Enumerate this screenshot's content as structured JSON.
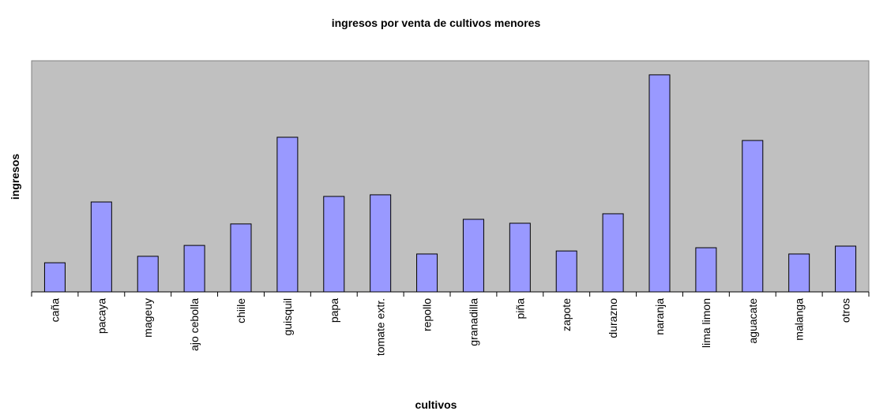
{
  "chart_data": {
    "type": "bar",
    "title": "ingresos por venta de cultivos menores",
    "xlabel": "cultivos",
    "ylabel": "ingresos",
    "categories": [
      "caña",
      "pacaya",
      "mageuy",
      "ajo cebolla",
      "chiile",
      "guisquil",
      "papa",
      "tomate extr.",
      "repollo",
      "granadilla",
      "piña",
      "zapote",
      "durazno",
      "naranja",
      "lima limon",
      "aguacate",
      "malanga",
      "otros"
    ],
    "values": [
      12.6,
      38.9,
      15.4,
      20.1,
      29.4,
      66.9,
      41.3,
      42.0,
      16.4,
      31.4,
      29.7,
      17.7,
      33.8,
      93.9,
      19.1,
      65.5,
      16.4,
      19.8
    ],
    "color": "#9999ff",
    "ylim": [
      0,
      100
    ]
  }
}
